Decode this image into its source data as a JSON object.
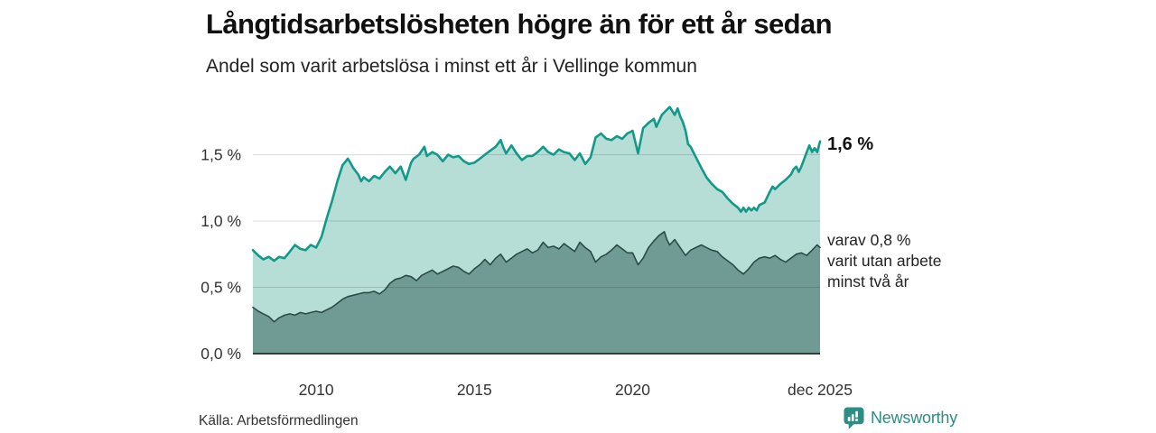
{
  "header": {
    "title": "Långtidsarbetslösheten högre än för ett år sedan",
    "subtitle": "Andel som varit arbetslösa i minst ett år i Vellinge kommun"
  },
  "chart_data": {
    "type": "area",
    "title": "Långtidsarbetslösheten högre än för ett år sedan",
    "subtitle": "Andel som varit arbetslösa i minst ett år i Vellinge kommun",
    "region": "Vellinge kommun",
    "xlim": [
      2008.0,
      2025.92
    ],
    "ylim": [
      0,
      1.9
    ],
    "grid": true,
    "legend_position": "right-annotations",
    "x_ticks": [
      {
        "value": 2010,
        "label": "2010"
      },
      {
        "value": 2015,
        "label": "2015"
      },
      {
        "value": 2020,
        "label": "2020"
      },
      {
        "value": 2025.92,
        "label": "dec 2025"
      }
    ],
    "y_ticks": [
      {
        "value": 0.0,
        "label": "0,0 %"
      },
      {
        "value": 0.5,
        "label": "0,5 %"
      },
      {
        "value": 1.0,
        "label": "1,0 %"
      },
      {
        "value": 1.5,
        "label": "1,5 %"
      }
    ],
    "series": [
      {
        "id": "unemployed-one-year",
        "name": "Andel arbetslösa minst ett år",
        "color": "#12998a",
        "fill": "#b6ded7",
        "latest_value": "1,6 %",
        "points": [
          [
            2008.0,
            0.78
          ],
          [
            2008.17,
            0.74
          ],
          [
            2008.33,
            0.71
          ],
          [
            2008.5,
            0.73
          ],
          [
            2008.67,
            0.7
          ],
          [
            2008.83,
            0.73
          ],
          [
            2009.0,
            0.72
          ],
          [
            2009.17,
            0.77
          ],
          [
            2009.33,
            0.82
          ],
          [
            2009.5,
            0.79
          ],
          [
            2009.67,
            0.78
          ],
          [
            2009.83,
            0.82
          ],
          [
            2010.0,
            0.8
          ],
          [
            2010.17,
            0.88
          ],
          [
            2010.33,
            1.02
          ],
          [
            2010.5,
            1.15
          ],
          [
            2010.67,
            1.3
          ],
          [
            2010.83,
            1.42
          ],
          [
            2011.0,
            1.47
          ],
          [
            2011.08,
            1.44
          ],
          [
            2011.17,
            1.4
          ],
          [
            2011.33,
            1.35
          ],
          [
            2011.42,
            1.3
          ],
          [
            2011.5,
            1.33
          ],
          [
            2011.67,
            1.3
          ],
          [
            2011.83,
            1.34
          ],
          [
            2012.0,
            1.32
          ],
          [
            2012.17,
            1.37
          ],
          [
            2012.33,
            1.41
          ],
          [
            2012.5,
            1.36
          ],
          [
            2012.67,
            1.41
          ],
          [
            2012.83,
            1.31
          ],
          [
            2013.0,
            1.44
          ],
          [
            2013.08,
            1.47
          ],
          [
            2013.25,
            1.5
          ],
          [
            2013.42,
            1.56
          ],
          [
            2013.5,
            1.49
          ],
          [
            2013.67,
            1.52
          ],
          [
            2013.83,
            1.5
          ],
          [
            2014.0,
            1.45
          ],
          [
            2014.17,
            1.5
          ],
          [
            2014.33,
            1.48
          ],
          [
            2014.5,
            1.49
          ],
          [
            2014.67,
            1.45
          ],
          [
            2014.83,
            1.43
          ],
          [
            2015.0,
            1.44
          ],
          [
            2015.17,
            1.47
          ],
          [
            2015.33,
            1.5
          ],
          [
            2015.5,
            1.53
          ],
          [
            2015.67,
            1.56
          ],
          [
            2015.83,
            1.61
          ],
          [
            2015.92,
            1.55
          ],
          [
            2016.0,
            1.51
          ],
          [
            2016.17,
            1.57
          ],
          [
            2016.33,
            1.51
          ],
          [
            2016.5,
            1.46
          ],
          [
            2016.67,
            1.49
          ],
          [
            2016.83,
            1.49
          ],
          [
            2017.0,
            1.52
          ],
          [
            2017.17,
            1.56
          ],
          [
            2017.33,
            1.52
          ],
          [
            2017.5,
            1.5
          ],
          [
            2017.67,
            1.54
          ],
          [
            2017.83,
            1.52
          ],
          [
            2018.0,
            1.51
          ],
          [
            2018.17,
            1.46
          ],
          [
            2018.33,
            1.51
          ],
          [
            2018.5,
            1.43
          ],
          [
            2018.67,
            1.48
          ],
          [
            2018.83,
            1.63
          ],
          [
            2019.0,
            1.66
          ],
          [
            2019.17,
            1.62
          ],
          [
            2019.33,
            1.61
          ],
          [
            2019.5,
            1.64
          ],
          [
            2019.67,
            1.62
          ],
          [
            2019.83,
            1.66
          ],
          [
            2020.0,
            1.68
          ],
          [
            2020.08,
            1.6
          ],
          [
            2020.17,
            1.51
          ],
          [
            2020.33,
            1.7
          ],
          [
            2020.5,
            1.74
          ],
          [
            2020.67,
            1.77
          ],
          [
            2020.75,
            1.71
          ],
          [
            2020.92,
            1.8
          ],
          [
            2021.0,
            1.82
          ],
          [
            2021.17,
            1.86
          ],
          [
            2021.33,
            1.8
          ],
          [
            2021.42,
            1.85
          ],
          [
            2021.5,
            1.79
          ],
          [
            2021.58,
            1.75
          ],
          [
            2021.67,
            1.68
          ],
          [
            2021.75,
            1.58
          ],
          [
            2021.83,
            1.56
          ],
          [
            2022.0,
            1.48
          ],
          [
            2022.17,
            1.4
          ],
          [
            2022.33,
            1.33
          ],
          [
            2022.5,
            1.28
          ],
          [
            2022.67,
            1.24
          ],
          [
            2022.83,
            1.22
          ],
          [
            2023.0,
            1.17
          ],
          [
            2023.17,
            1.13
          ],
          [
            2023.33,
            1.1
          ],
          [
            2023.42,
            1.07
          ],
          [
            2023.5,
            1.1
          ],
          [
            2023.58,
            1.07
          ],
          [
            2023.67,
            1.1
          ],
          [
            2023.75,
            1.08
          ],
          [
            2023.83,
            1.1
          ],
          [
            2023.92,
            1.08
          ],
          [
            2024.0,
            1.12
          ],
          [
            2024.17,
            1.14
          ],
          [
            2024.33,
            1.22
          ],
          [
            2024.42,
            1.26
          ],
          [
            2024.5,
            1.24
          ],
          [
            2024.67,
            1.28
          ],
          [
            2024.83,
            1.31
          ],
          [
            2025.0,
            1.35
          ],
          [
            2025.08,
            1.39
          ],
          [
            2025.17,
            1.41
          ],
          [
            2025.25,
            1.37
          ],
          [
            2025.33,
            1.41
          ],
          [
            2025.5,
            1.52
          ],
          [
            2025.58,
            1.57
          ],
          [
            2025.67,
            1.52
          ],
          [
            2025.75,
            1.55
          ],
          [
            2025.83,
            1.52
          ],
          [
            2025.92,
            1.6
          ]
        ]
      },
      {
        "id": "unemployed-two-years",
        "name": "varav utan arbete minst två år",
        "color": "#2b4c46",
        "fill": "#6f9b94",
        "latest_value": "0,8 %",
        "points": [
          [
            2008.0,
            0.35
          ],
          [
            2008.17,
            0.32
          ],
          [
            2008.33,
            0.3
          ],
          [
            2008.5,
            0.28
          ],
          [
            2008.67,
            0.24
          ],
          [
            2008.83,
            0.27
          ],
          [
            2009.0,
            0.29
          ],
          [
            2009.17,
            0.3
          ],
          [
            2009.33,
            0.29
          ],
          [
            2009.5,
            0.31
          ],
          [
            2009.67,
            0.3
          ],
          [
            2009.83,
            0.31
          ],
          [
            2010.0,
            0.32
          ],
          [
            2010.17,
            0.31
          ],
          [
            2010.33,
            0.33
          ],
          [
            2010.5,
            0.35
          ],
          [
            2010.67,
            0.38
          ],
          [
            2010.83,
            0.41
          ],
          [
            2011.0,
            0.43
          ],
          [
            2011.17,
            0.44
          ],
          [
            2011.33,
            0.45
          ],
          [
            2011.5,
            0.46
          ],
          [
            2011.67,
            0.46
          ],
          [
            2011.83,
            0.47
          ],
          [
            2012.0,
            0.45
          ],
          [
            2012.17,
            0.48
          ],
          [
            2012.33,
            0.53
          ],
          [
            2012.5,
            0.56
          ],
          [
            2012.67,
            0.57
          ],
          [
            2012.83,
            0.59
          ],
          [
            2013.0,
            0.58
          ],
          [
            2013.17,
            0.55
          ],
          [
            2013.33,
            0.59
          ],
          [
            2013.5,
            0.61
          ],
          [
            2013.67,
            0.63
          ],
          [
            2013.83,
            0.6
          ],
          [
            2014.0,
            0.62
          ],
          [
            2014.17,
            0.64
          ],
          [
            2014.33,
            0.66
          ],
          [
            2014.5,
            0.65
          ],
          [
            2014.67,
            0.62
          ],
          [
            2014.83,
            0.6
          ],
          [
            2015.0,
            0.64
          ],
          [
            2015.17,
            0.67
          ],
          [
            2015.33,
            0.71
          ],
          [
            2015.5,
            0.67
          ],
          [
            2015.67,
            0.72
          ],
          [
            2015.83,
            0.75
          ],
          [
            2016.0,
            0.69
          ],
          [
            2016.17,
            0.72
          ],
          [
            2016.33,
            0.75
          ],
          [
            2016.5,
            0.77
          ],
          [
            2016.67,
            0.79
          ],
          [
            2016.83,
            0.76
          ],
          [
            2017.0,
            0.78
          ],
          [
            2017.17,
            0.84
          ],
          [
            2017.33,
            0.8
          ],
          [
            2017.5,
            0.81
          ],
          [
            2017.67,
            0.79
          ],
          [
            2017.83,
            0.83
          ],
          [
            2018.0,
            0.8
          ],
          [
            2018.17,
            0.77
          ],
          [
            2018.33,
            0.84
          ],
          [
            2018.5,
            0.8
          ],
          [
            2018.67,
            0.77
          ],
          [
            2018.83,
            0.69
          ],
          [
            2019.0,
            0.73
          ],
          [
            2019.17,
            0.75
          ],
          [
            2019.33,
            0.78
          ],
          [
            2019.5,
            0.82
          ],
          [
            2019.67,
            0.79
          ],
          [
            2019.83,
            0.76
          ],
          [
            2020.0,
            0.76
          ],
          [
            2020.17,
            0.67
          ],
          [
            2020.33,
            0.72
          ],
          [
            2020.5,
            0.8
          ],
          [
            2020.67,
            0.85
          ],
          [
            2020.83,
            0.89
          ],
          [
            2021.0,
            0.92
          ],
          [
            2021.08,
            0.86
          ],
          [
            2021.17,
            0.82
          ],
          [
            2021.33,
            0.86
          ],
          [
            2021.5,
            0.8
          ],
          [
            2021.67,
            0.74
          ],
          [
            2021.83,
            0.78
          ],
          [
            2022.0,
            0.8
          ],
          [
            2022.17,
            0.82
          ],
          [
            2022.33,
            0.8
          ],
          [
            2022.5,
            0.78
          ],
          [
            2022.67,
            0.77
          ],
          [
            2022.83,
            0.73
          ],
          [
            2023.0,
            0.7
          ],
          [
            2023.17,
            0.67
          ],
          [
            2023.33,
            0.63
          ],
          [
            2023.5,
            0.6
          ],
          [
            2023.67,
            0.64
          ],
          [
            2023.83,
            0.69
          ],
          [
            2024.0,
            0.72
          ],
          [
            2024.17,
            0.73
          ],
          [
            2024.33,
            0.72
          ],
          [
            2024.5,
            0.74
          ],
          [
            2024.67,
            0.71
          ],
          [
            2024.83,
            0.69
          ],
          [
            2025.0,
            0.72
          ],
          [
            2025.17,
            0.75
          ],
          [
            2025.33,
            0.76
          ],
          [
            2025.5,
            0.74
          ],
          [
            2025.67,
            0.78
          ],
          [
            2025.83,
            0.82
          ],
          [
            2025.92,
            0.8
          ]
        ]
      }
    ],
    "end_labels": {
      "primary": "1,6 %",
      "secondary": "varav 0,8 %\nvarit utan arbete\nminst två år"
    }
  },
  "footer": {
    "source": "Källa: Arbetsförmedlingen",
    "brand": "Newsworthy"
  },
  "colors": {
    "line_primary": "#12998a",
    "fill_primary": "#b6ded7",
    "line_secondary": "#2b4c46",
    "fill_secondary": "#6f9b94",
    "brand_teal": "#2e8c83",
    "axis": "#3a3a3a",
    "text": "#111111"
  }
}
